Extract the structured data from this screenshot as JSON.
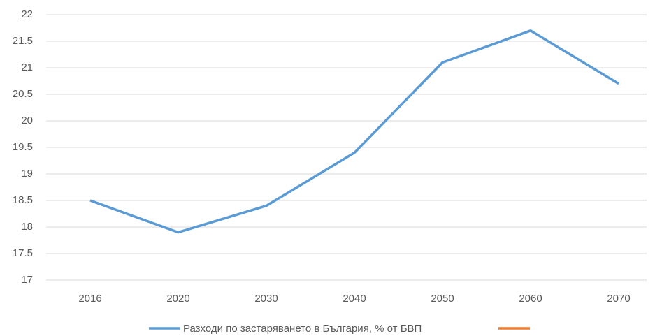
{
  "chart_data": {
    "type": "line",
    "categories": [
      "2016",
      "2020",
      "2030",
      "2040",
      "2050",
      "2060",
      "2070"
    ],
    "series": [
      {
        "name": "Разходи по застаряването в България, % от БВП",
        "color": "#5b9bd5",
        "values": [
          18.5,
          17.9,
          18.4,
          19.4,
          21.1,
          21.7,
          20.7
        ]
      },
      {
        "color": "#ed7d31",
        "values": [
          null,
          null,
          null,
          null,
          null,
          null,
          null
        ]
      }
    ],
    "ylim": [
      17,
      22
    ],
    "yticks": [
      17,
      17.5,
      18,
      18.5,
      19,
      19.5,
      20,
      20.5,
      21,
      21.5,
      22
    ],
    "grid": true,
    "legend": "bottom"
  }
}
